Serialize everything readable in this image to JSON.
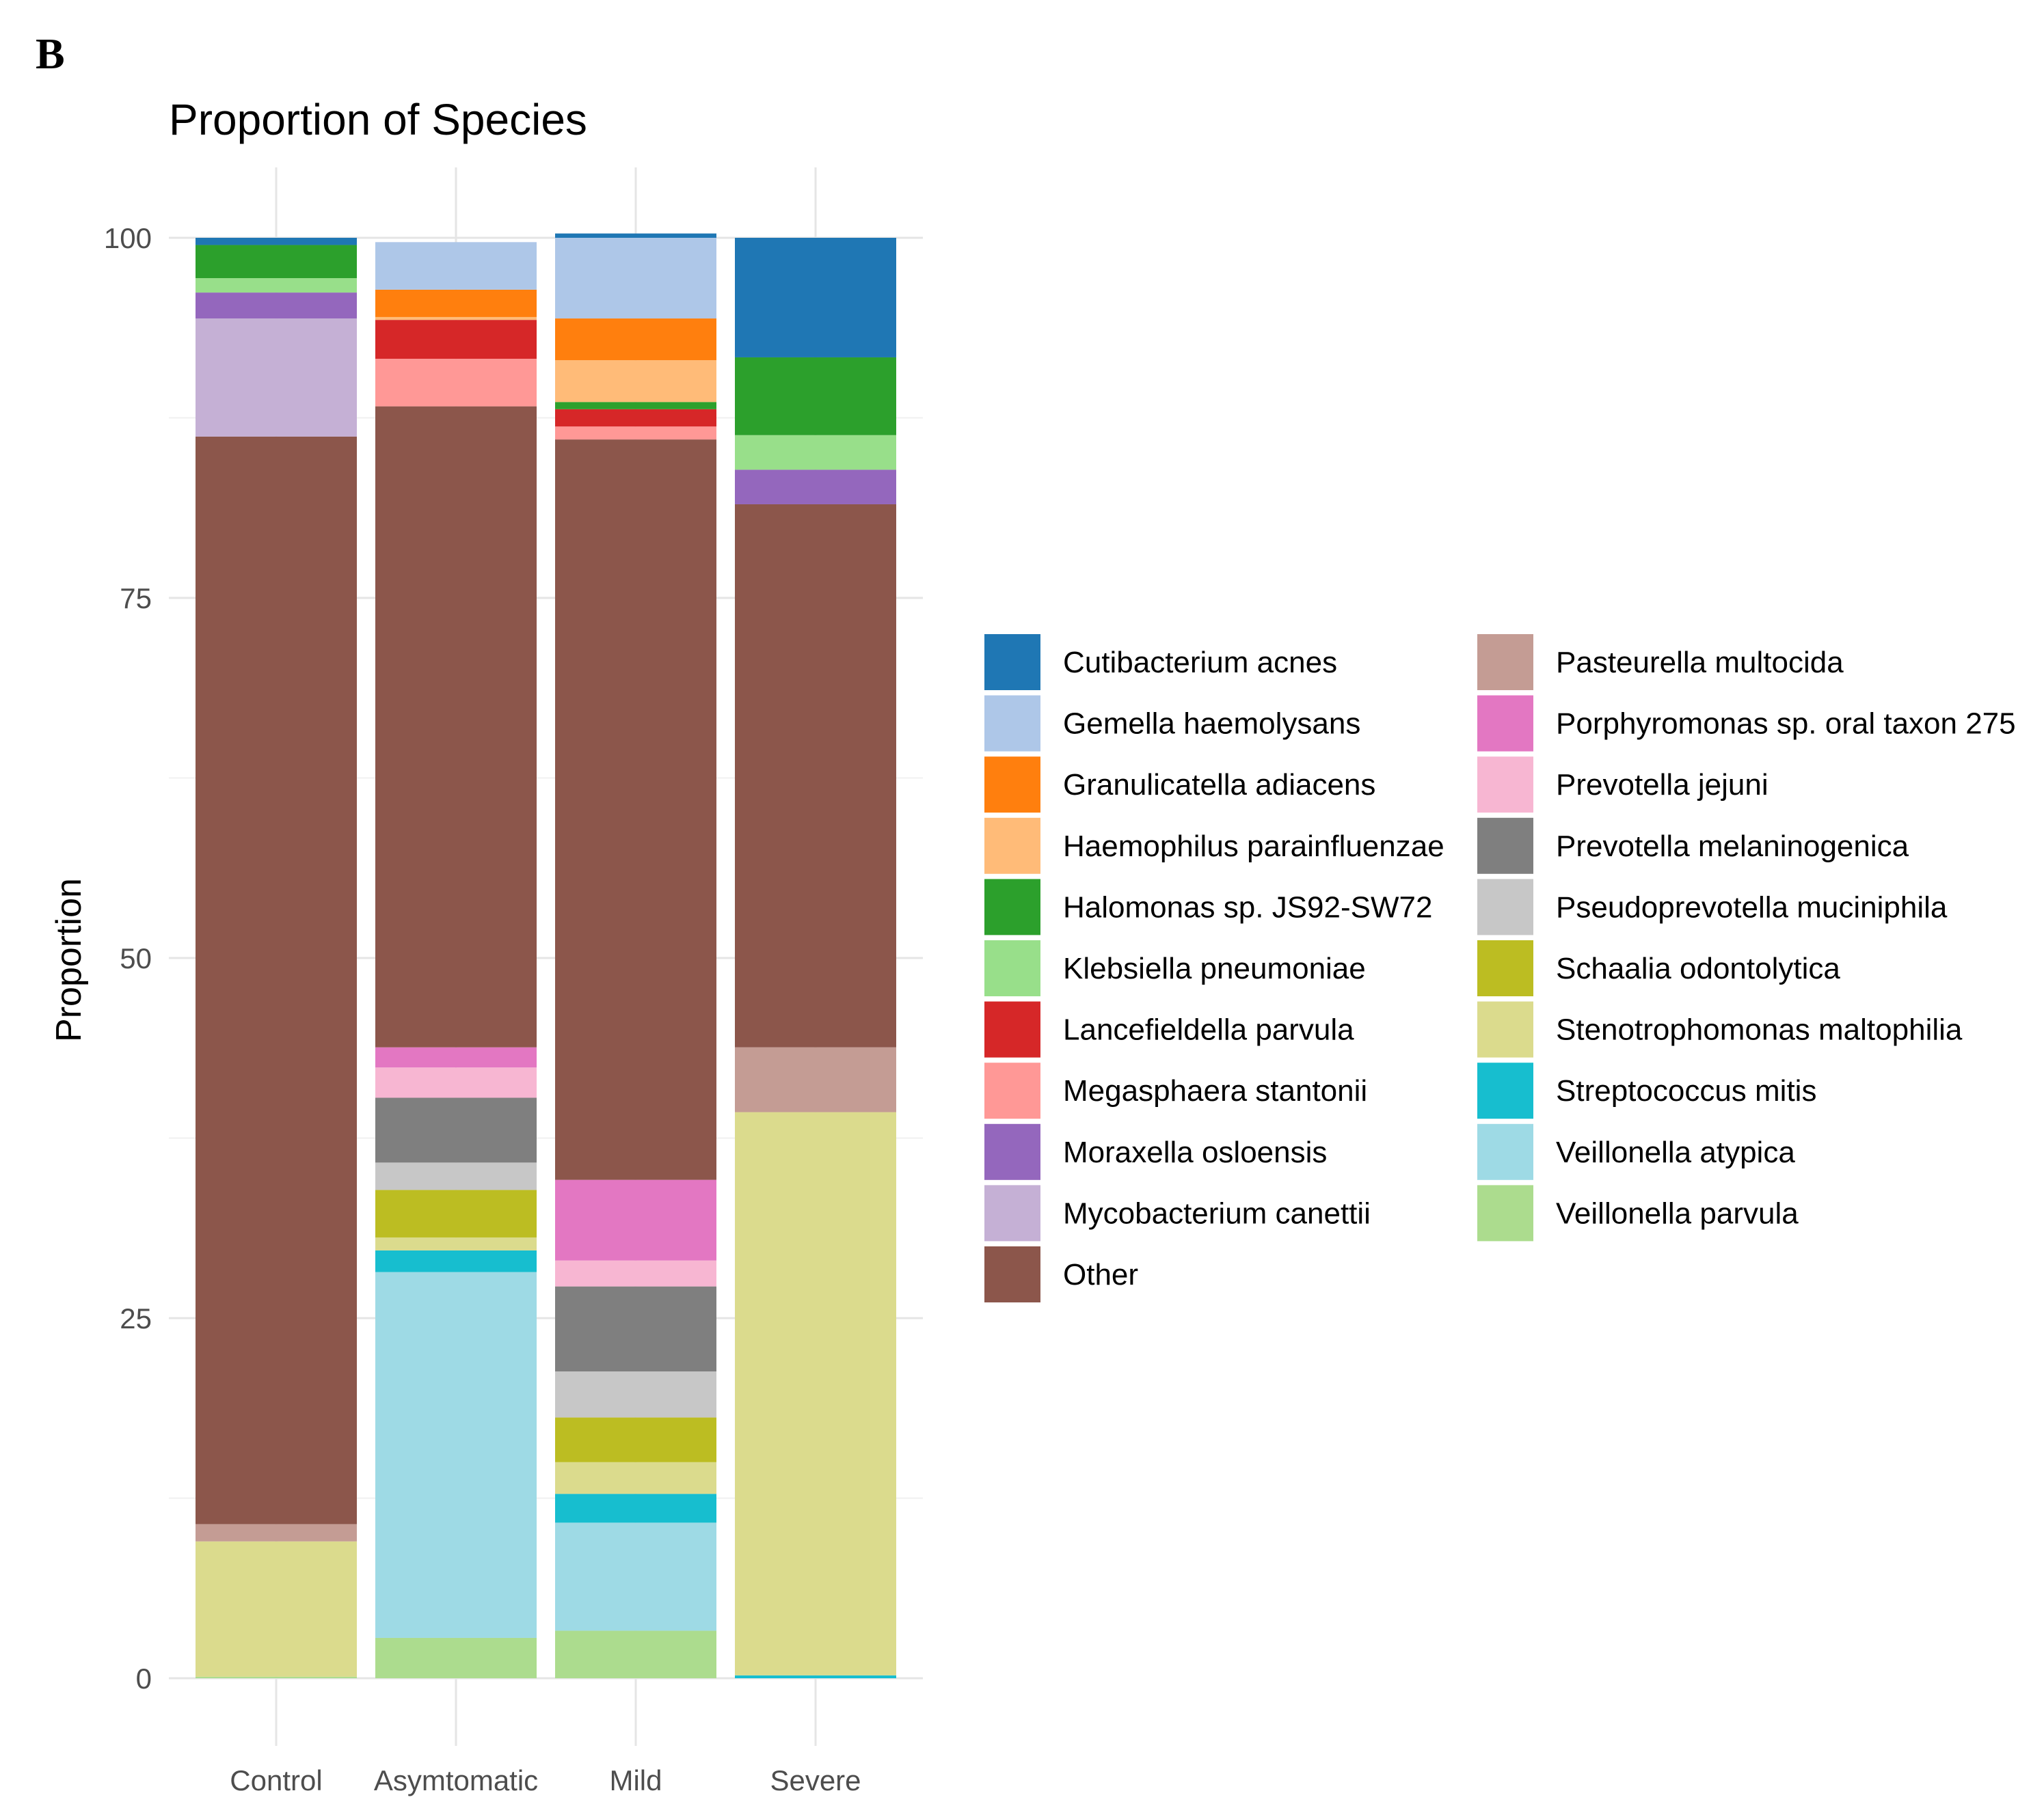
{
  "panel_label": "B",
  "chart_data": {
    "type": "bar",
    "stacked": true,
    "title": "Proportion of Species",
    "xlabel": "",
    "ylabel": "Proportion",
    "ylim": [
      0,
      100
    ],
    "yticks": [
      "0",
      "25",
      "50",
      "75",
      "100"
    ],
    "grid": true,
    "legend_position": "right",
    "categories": [
      "Control",
      "Asymtomatic",
      "Mild",
      "Severe"
    ],
    "series": [
      {
        "name": "Cutibacterium acnes",
        "color": "#1f77b4",
        "values": [
          0.5,
          0,
          0.3,
          8.3
        ]
      },
      {
        "name": "Gemella haemolysans",
        "color": "#aec7e8",
        "values": [
          0,
          3.3,
          5.6,
          0
        ]
      },
      {
        "name": "Granulicatella adiacens",
        "color": "#ff7f0e",
        "values": [
          0,
          1.9,
          2.9,
          0
        ]
      },
      {
        "name": "Haemophilus parainfluenzae",
        "color": "#ffbb78",
        "values": [
          0,
          0.2,
          2.9,
          0
        ]
      },
      {
        "name": "Halomonas sp. JS92-SW72",
        "color": "#2ca02c",
        "values": [
          2.3,
          0,
          0.5,
          5.4
        ]
      },
      {
        "name": "Klebsiella pneumoniae",
        "color": "#98df8a",
        "values": [
          1.0,
          0,
          0,
          2.4
        ]
      },
      {
        "name": "Lancefieldella parvula",
        "color": "#d62728",
        "values": [
          0,
          2.7,
          1.2,
          0
        ]
      },
      {
        "name": "Megasphaera stantonii",
        "color": "#ff9896",
        "values": [
          0,
          3.3,
          0.9,
          0
        ]
      },
      {
        "name": "Moraxella osloensis",
        "color": "#9467bd",
        "values": [
          1.8,
          0,
          0,
          2.4
        ]
      },
      {
        "name": "Mycobacterium canettii",
        "color": "#c5b0d5",
        "values": [
          8.2,
          0,
          0,
          0
        ]
      },
      {
        "name": "Other",
        "color": "#8c564b",
        "values": [
          75.5,
          44.5,
          51.4,
          37.7
        ]
      },
      {
        "name": "Pasteurella multocida",
        "color": "#c49c94",
        "values": [
          1.2,
          0,
          0,
          4.5
        ]
      },
      {
        "name": "Porphyromonas sp. oral taxon 275",
        "color": "#e377c2",
        "values": [
          0,
          1.4,
          5.6,
          0
        ]
      },
      {
        "name": "Prevotella jejuni",
        "color": "#f7b6d2",
        "values": [
          0,
          2.1,
          1.8,
          0
        ]
      },
      {
        "name": "Prevotella melaninogenica",
        "color": "#7f7f7f",
        "values": [
          0,
          4.5,
          5.9,
          0
        ]
      },
      {
        "name": "Pseudoprevotella muciniphila",
        "color": "#c7c7c7",
        "values": [
          0,
          1.9,
          3.2,
          0
        ]
      },
      {
        "name": "Schaalia odontolytica",
        "color": "#bcbd22",
        "values": [
          0,
          3.3,
          3.1,
          0
        ]
      },
      {
        "name": "Stenotrophomonas maltophilia",
        "color": "#dbdb8d",
        "values": [
          9.4,
          0.9,
          2.2,
          39.1
        ]
      },
      {
        "name": "Streptococcus mitis",
        "color": "#17becf",
        "values": [
          0,
          1.5,
          2.0,
          0.2
        ]
      },
      {
        "name": "Veillonella atypica",
        "color": "#9edae5",
        "values": [
          0,
          25.4,
          7.5,
          0
        ]
      },
      {
        "name": "Veillonella parvula",
        "color": "#acdc8e",
        "values": [
          0.1,
          2.8,
          3.3,
          0
        ]
      }
    ]
  }
}
